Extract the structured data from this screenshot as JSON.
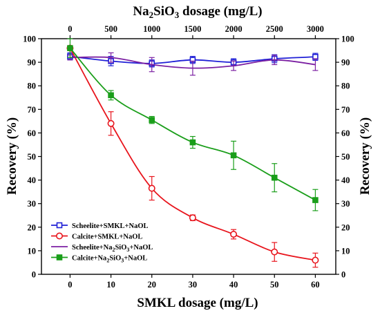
{
  "chart_data": {
    "type": "line",
    "x_bottom": {
      "label": "SMKL dosage (mg/L)",
      "ticks": [
        0,
        10,
        20,
        30,
        40,
        50,
        60
      ],
      "range": [
        -7,
        65
      ]
    },
    "x_top": {
      "label_main": "Na",
      "label_sub1": "2",
      "label_mid": "SiO",
      "label_sub2": "3",
      "label_tail": " dosage (mg/L)",
      "ticks": [
        0,
        500,
        1000,
        1500,
        2000,
        2500,
        3000
      ]
    },
    "y_left": {
      "label": "Recovery (%)",
      "ticks": [
        0,
        10,
        20,
        30,
        40,
        50,
        60,
        70,
        80,
        90,
        100
      ],
      "range": [
        0,
        100
      ]
    },
    "y_right": {
      "label": "Recovery (%)",
      "ticks": [
        0,
        10,
        20,
        30,
        40,
        50,
        60,
        70,
        80,
        90,
        100
      ],
      "range": [
        0,
        100
      ]
    },
    "grid": false,
    "legend_position": "lower-left",
    "series": [
      {
        "name": "Scheelite+SMKL+NaOL",
        "parts": [],
        "color": "#1f1fd6",
        "marker": "square-open",
        "x": [
          0,
          10,
          20,
          30,
          40,
          50,
          60
        ],
        "y": [
          92.5,
          90.5,
          89.5,
          91.0,
          90.0,
          91.5,
          92.3
        ],
        "err": [
          1.5,
          2.0,
          1.5,
          1.5,
          1.5,
          1.7,
          1.5
        ]
      },
      {
        "name": "Calcite+SMKL+NaOL",
        "parts": [],
        "color": "#e8141c",
        "marker": "circle-open",
        "x": [
          0,
          10,
          20,
          30,
          40,
          50,
          60
        ],
        "y": [
          96.0,
          64.0,
          36.5,
          24.0,
          17.0,
          9.5,
          6.0
        ],
        "err": [
          1.0,
          5.0,
          5.0,
          1.2,
          2.0,
          4.0,
          3.0
        ]
      },
      {
        "name": "",
        "parts": [
          "Scheelite+Na",
          "2",
          "SiO",
          "3",
          "+NaOL"
        ],
        "color": "#7b1fa2",
        "marker": "none",
        "x": [
          0,
          10,
          20,
          30,
          40,
          50,
          60
        ],
        "y": [
          92.0,
          92.0,
          89.0,
          87.5,
          88.5,
          91.0,
          89.0
        ],
        "err": [
          1.0,
          2.0,
          3.0,
          3.0,
          2.0,
          2.0,
          2.5
        ]
      },
      {
        "name": "",
        "parts": [
          "Calcite+Na",
          "2",
          "SiO",
          "3",
          "+NaOL"
        ],
        "color": "#1a9e1a",
        "marker": "square-filled",
        "x": [
          0,
          10,
          20,
          30,
          40,
          50,
          60
        ],
        "y": [
          96.0,
          76.0,
          65.5,
          56.0,
          50.5,
          41.0,
          31.5
        ],
        "err": [
          4.0,
          2.0,
          1.5,
          2.5,
          6.0,
          6.0,
          4.5
        ]
      }
    ]
  }
}
